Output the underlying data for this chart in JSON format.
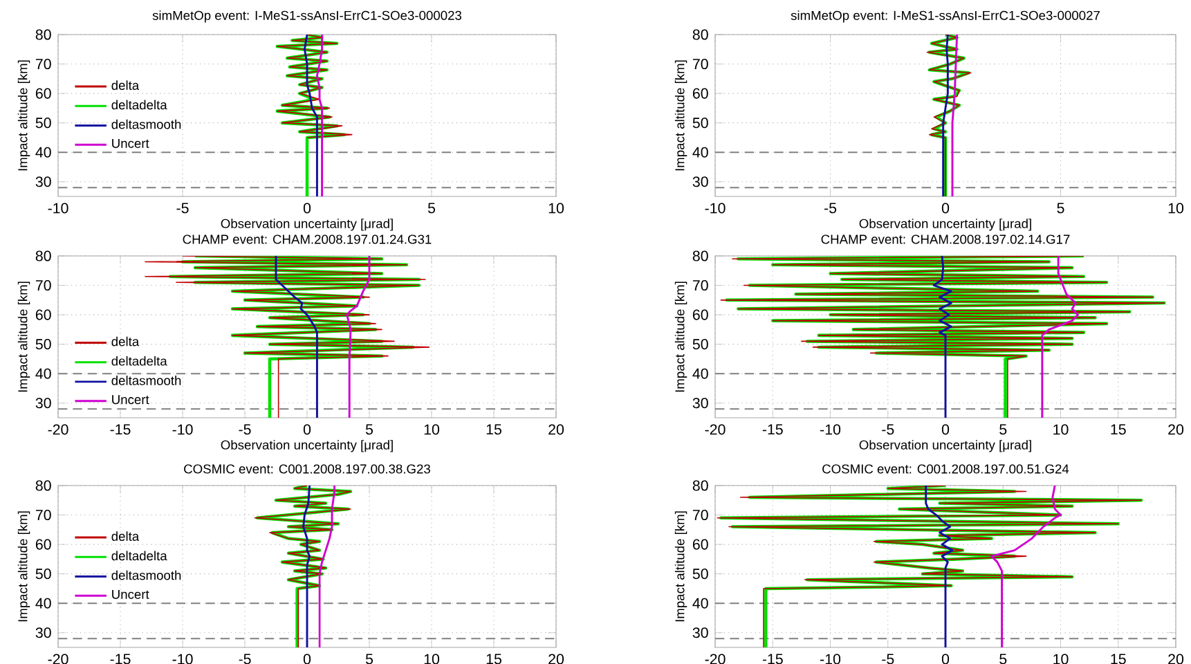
{
  "chart_data": [
    {
      "type": "line",
      "title": "simMetOp event: I-MeS1-ssAnsI-ErrC1-SOe3-000023",
      "xlabel": "Observation uncertainty [μrad]",
      "ylabel": "Impact altitude [km]",
      "xlim": [
        -10,
        10
      ],
      "xticks": [
        -10,
        -5,
        0,
        5,
        10
      ],
      "ylim": [
        25,
        80
      ],
      "yticks": [
        30,
        40,
        50,
        60,
        70,
        80
      ],
      "grid": true,
      "legend": "left",
      "ref_lines": [
        {
          "axis": "y",
          "value": 40,
          "color": "#808080",
          "line_style": "dashed"
        },
        {
          "axis": "y",
          "value": 28,
          "color": "#808080",
          "line_style": "dashed"
        }
      ],
      "series": [
        {
          "name": "delta",
          "color": "#c00000",
          "x": [
            0,
            1.8,
            -0.3,
            1.4,
            -1.0,
            1.0,
            -1.2,
            0.9,
            -1.0,
            0.5,
            -0.3,
            0.6,
            -0.3,
            0.6,
            -0.8,
            0.8,
            -0.7,
            0.8,
            -0.8,
            0.8,
            -1.2,
            1.2,
            -0.6,
            0.6,
            0
          ],
          "values": [
            45,
            46,
            47,
            49,
            50,
            52,
            54,
            55,
            56,
            58,
            60,
            62,
            63,
            65,
            66,
            68,
            69,
            71,
            72,
            74,
            76,
            77,
            78,
            79,
            80
          ]
        },
        {
          "name": "deltadelta",
          "color": "#00e000",
          "x": [
            0,
            0,
            1.5,
            -0.3,
            1.2,
            -1.0,
            0.9,
            -1.2,
            0.8,
            -1.0,
            0.3,
            -0.3,
            0.6,
            -0.3,
            0.6,
            -0.8,
            0.8,
            -0.7,
            0.8,
            -0.8,
            0.8,
            -1.2,
            1.2,
            -0.6,
            0.6,
            0
          ],
          "values": [
            25,
            45,
            46,
            47,
            49,
            50,
            52,
            54,
            55,
            56,
            58,
            60,
            62,
            63,
            65,
            66,
            68,
            69,
            71,
            72,
            74,
            76,
            77,
            78,
            79,
            80
          ]
        },
        {
          "name": "deltasmooth",
          "color": "#1010a0",
          "x": [
            0.4,
            0.4,
            0.2,
            0.1,
            0,
            0,
            -0.1,
            0
          ],
          "values": [
            25,
            52,
            55,
            60,
            63,
            70,
            75,
            80
          ]
        },
        {
          "name": "Uncert",
          "color": "#d000d0",
          "x": [
            0.6,
            0.6,
            0.5,
            0.5,
            0.4,
            0.5,
            0.6,
            0.6
          ],
          "values": [
            25,
            55,
            58,
            62,
            66,
            70,
            75,
            80
          ]
        }
      ]
    },
    {
      "type": "line",
      "title": "simMetOp event: I-MeS1-ssAnsI-ErrC1-SOe3-000027",
      "xlabel": "Observation uncertainty [μrad]",
      "ylabel": "Impact altitude [km]",
      "xlim": [
        -10,
        10
      ],
      "xticks": [
        -10,
        -5,
        0,
        5,
        10
      ],
      "ylim": [
        25,
        80
      ],
      "yticks": [
        30,
        40,
        50,
        60,
        70,
        80
      ],
      "grid": true,
      "ref_lines": [
        {
          "axis": "y",
          "value": 40,
          "color": "#808080",
          "line_style": "dashed"
        },
        {
          "axis": "y",
          "value": 28,
          "color": "#808080",
          "line_style": "dashed"
        }
      ],
      "series": [
        {
          "color": "#c00000",
          "x": [
            0,
            0,
            -0.7,
            0,
            -0.6,
            0,
            -0.5,
            0.2,
            0.6,
            -0.5,
            0.5,
            0.6,
            -0.5,
            0.3,
            1.1,
            -0.7,
            0.2,
            0.8,
            -0.8,
            0.5,
            -0.6,
            0.5,
            0
          ],
          "values": [
            25,
            45,
            46,
            47,
            48,
            50,
            52,
            54,
            56,
            58,
            59,
            61,
            64,
            65,
            67,
            68,
            70,
            72,
            74,
            75,
            77,
            79,
            80
          ]
        },
        {
          "color": "#00e000",
          "x": [
            0,
            0,
            -0.6,
            0,
            -0.5,
            0,
            -0.4,
            0.2,
            0.6,
            -0.5,
            0.4,
            0.6,
            -0.5,
            0.3,
            1.0,
            -0.7,
            0.2,
            0.8,
            -0.7,
            0.5,
            -0.6,
            0.5,
            0
          ],
          "values": [
            25,
            45,
            46,
            47,
            48,
            50,
            52,
            54,
            56,
            58,
            59,
            61,
            64,
            65,
            67,
            68,
            70,
            72,
            74,
            75,
            77,
            79,
            80
          ]
        },
        {
          "color": "#1010a0",
          "x": [
            -0.1,
            -0.1,
            0,
            0.1,
            0.1,
            0.05,
            0.1
          ],
          "values": [
            25,
            50,
            55,
            60,
            70,
            75,
            80
          ]
        },
        {
          "color": "#d000d0",
          "x": [
            0.3,
            0.3,
            0.4,
            0.5
          ],
          "values": [
            25,
            50,
            60,
            80
          ]
        }
      ]
    },
    {
      "type": "line",
      "title": "CHAMP event: CHAM.2008.197.01.24.G31",
      "xlabel": "Observation uncertainty [μrad]",
      "ylabel": "Impact altitude [km]",
      "xlim": [
        -20,
        20
      ],
      "xticks": [
        -20,
        -15,
        -10,
        -5,
        0,
        5,
        10,
        15,
        20
      ],
      "ylim": [
        25,
        80
      ],
      "yticks": [
        30,
        40,
        50,
        60,
        70,
        80
      ],
      "grid": true,
      "legend": "bottom left",
      "ref_lines": [
        {
          "axis": "y",
          "value": 40,
          "color": "#808080",
          "line_style": "dashed"
        },
        {
          "axis": "y",
          "value": 28,
          "color": "#808080",
          "line_style": "dashed"
        }
      ],
      "series": [
        {
          "name": "delta",
          "color": "#c00000",
          "x": [
            -2.3,
            -2.3,
            6.5,
            -5,
            9.8,
            -3,
            7,
            -6,
            6,
            -4,
            5.5,
            -3,
            5,
            -6,
            4,
            -5,
            5,
            -6,
            9,
            -10.5,
            9.5,
            -13,
            6,
            -9,
            8,
            -13,
            6,
            -10
          ],
          "values": [
            25,
            45,
            46,
            47,
            49,
            50,
            51,
            53,
            55,
            56,
            57,
            59,
            60,
            62,
            63,
            65,
            66,
            68,
            70,
            71,
            72,
            73,
            74,
            76,
            77,
            78,
            79,
            80
          ]
        },
        {
          "name": "deltadelta",
          "color": "#00e000",
          "x": [
            -3,
            -3,
            6,
            -5,
            8.5,
            -3,
            6,
            -6,
            5.5,
            -4,
            5,
            -3,
            4.5,
            -6,
            4,
            -5,
            4.5,
            -6,
            9,
            -9,
            9,
            -11,
            6,
            -9,
            8,
            -10,
            6,
            -9
          ],
          "values": [
            25,
            45,
            46,
            47,
            49,
            50,
            51,
            53,
            55,
            56,
            57,
            59,
            60,
            62,
            63,
            65,
            66,
            68,
            70,
            71,
            72,
            73,
            74,
            76,
            77,
            78,
            79,
            80
          ]
        },
        {
          "name": "deltasmooth",
          "color": "#1010a0",
          "x": [
            0.8,
            0.8,
            0.6,
            0,
            -0.5,
            -0.4,
            -1,
            -2,
            -2.5,
            -2.5
          ],
          "values": [
            25,
            54,
            56,
            60,
            62,
            64,
            66,
            70,
            72,
            80
          ]
        },
        {
          "name": "Uncert",
          "color": "#d000d0",
          "x": [
            3.4,
            3.4,
            3.5,
            3.2,
            3.4,
            4,
            4.5,
            5,
            5
          ],
          "values": [
            25,
            45,
            55,
            60,
            61,
            63,
            68,
            72,
            80
          ]
        }
      ]
    },
    {
      "type": "line",
      "title": "CHAMP event: CHAM.2008.197.02.14.G17",
      "xlabel": "Observation uncertainty [μrad]",
      "ylabel": "Impact altitude [km]",
      "xlim": [
        -20,
        20
      ],
      "xticks": [
        -20,
        -15,
        -10,
        -5,
        0,
        5,
        10,
        15,
        20
      ],
      "ylim": [
        25,
        80
      ],
      "yticks": [
        30,
        40,
        50,
        60,
        70,
        80
      ],
      "grid": true,
      "ref_lines": [
        {
          "axis": "y",
          "value": 40,
          "color": "#808080",
          "line_style": "dashed"
        },
        {
          "axis": "y",
          "value": 28,
          "color": "#808080",
          "line_style": "dashed"
        }
      ],
      "series": [
        {
          "color": "#c00000",
          "x": [
            5.4,
            5.4,
            7,
            -6.5,
            9,
            -11.5,
            11,
            -12.5,
            11,
            -11,
            12,
            -8,
            14,
            -15,
            13,
            -10,
            16,
            -18,
            19,
            -19.5,
            18,
            -13,
            8,
            -17.5,
            14,
            -9,
            12,
            -10,
            11,
            -15,
            9,
            -18.5,
            12
          ],
          "values": [
            25,
            45,
            46,
            47,
            48,
            49,
            50,
            51,
            52,
            53,
            54,
            55,
            57,
            58,
            59,
            60,
            61,
            62,
            64,
            65,
            66,
            67,
            68,
            70,
            71,
            72,
            73,
            74,
            76,
            77,
            78,
            79,
            80
          ]
        },
        {
          "color": "#00e000",
          "x": [
            5.2,
            5.2,
            7,
            -6,
            9,
            -11,
            11,
            -12,
            11,
            -11,
            12,
            -8,
            14,
            -15,
            13,
            -10,
            16,
            -18,
            19,
            -19,
            18,
            -13,
            8,
            -17,
            14,
            -9,
            12,
            -10,
            11,
            -15,
            9,
            -18,
            12
          ],
          "values": [
            25,
            45,
            46,
            47,
            48,
            49,
            50,
            51,
            52,
            53,
            54,
            55,
            57,
            58,
            59,
            60,
            61,
            62,
            64,
            65,
            66,
            67,
            68,
            70,
            71,
            72,
            73,
            74,
            76,
            77,
            78,
            79,
            80
          ]
        },
        {
          "color": "#1010a0",
          "x": [
            0,
            0,
            -0.5,
            0.5,
            -0.5,
            0.3,
            -0.5,
            0.5,
            -0.5,
            0.5,
            -1,
            -0.3,
            -0.2,
            -0.3
          ],
          "values": [
            25,
            53,
            54,
            56,
            58,
            60,
            62,
            64,
            66,
            68,
            70,
            72,
            76,
            80
          ]
        },
        {
          "color": "#d000d0",
          "x": [
            8.4,
            8.4,
            9,
            11,
            11.5,
            11,
            11.3,
            10.5,
            10,
            9.8,
            9.8
          ],
          "values": [
            25,
            53,
            55,
            58,
            60,
            62,
            64,
            67,
            72,
            74,
            80
          ]
        }
      ]
    },
    {
      "type": "line",
      "title": "COSMIC event: C001.2008.197.00.38.G23",
      "ylabel": "Impact altitude [km]",
      "xlim": [
        -20,
        20
      ],
      "xticks": [
        -20,
        -15,
        -10,
        -5,
        0,
        5,
        10,
        15,
        20
      ],
      "ylim": [
        25,
        80
      ],
      "yticks": [
        30,
        40,
        50,
        60,
        70,
        80
      ],
      "grid": true,
      "legend": "left",
      "ref_lines": [
        {
          "axis": "y",
          "value": 40,
          "color": "#808080",
          "line_style": "dashed"
        },
        {
          "axis": "y",
          "value": 28,
          "color": "#808080",
          "line_style": "dashed"
        }
      ],
      "series": [
        {
          "name": "delta",
          "color": "#c00000",
          "x": [
            -0.7,
            -0.7,
            1,
            -1.5,
            1.2,
            -1,
            1.5,
            -2,
            1.3,
            -1.5,
            1,
            -0.5,
            1,
            -1.5,
            -3,
            2,
            -1.5,
            2.5,
            -4.2,
            3.5,
            -1,
            1.5,
            -2.5,
            2.5,
            3.5,
            -1,
            0
          ],
          "values": [
            25,
            45,
            46,
            48,
            50,
            51,
            52,
            54,
            55,
            57,
            58,
            60,
            61,
            62,
            64,
            65,
            66,
            67,
            69,
            72,
            73,
            74,
            75,
            77,
            78,
            79,
            80
          ]
        },
        {
          "name": "deltadelta",
          "color": "#00e000",
          "x": [
            -0.8,
            -0.8,
            1,
            -1.5,
            1.2,
            -1,
            1.5,
            -2,
            1.3,
            -1.5,
            1,
            -0.5,
            1,
            -1.5,
            -2.8,
            2,
            -1.5,
            2.5,
            -4,
            3.3,
            -1,
            1.5,
            -2.5,
            2.5,
            3.5,
            -1,
            0
          ],
          "values": [
            25,
            45,
            46,
            48,
            50,
            51,
            52,
            54,
            55,
            57,
            58,
            60,
            61,
            62,
            64,
            65,
            66,
            67,
            69,
            72,
            73,
            74,
            75,
            77,
            78,
            79,
            80
          ]
        },
        {
          "name": "deltasmooth",
          "color": "#1010a0",
          "x": [
            0,
            0,
            0.2,
            0,
            0,
            -0.3,
            -0.2,
            0.1,
            0.2
          ],
          "values": [
            25,
            53,
            56,
            58,
            62,
            66,
            70,
            74,
            80
          ]
        },
        {
          "name": "Uncert",
          "color": "#d000d0",
          "x": [
            1,
            1,
            1.2,
            1.5,
            1.8,
            2,
            2,
            2.2,
            2.2
          ],
          "values": [
            25,
            50,
            54,
            58,
            62,
            66,
            72,
            78,
            80
          ]
        }
      ]
    },
    {
      "type": "line",
      "title": "COSMIC event: C001.2008.197.00.51.G24",
      "ylabel": "Impact altitude [km]",
      "xlim": [
        -20,
        20
      ],
      "xticks": [
        -20,
        -15,
        -10,
        -5,
        0,
        5,
        10,
        15,
        20
      ],
      "ylim": [
        25,
        80
      ],
      "yticks": [
        30,
        40,
        50,
        60,
        70,
        80
      ],
      "grid": true,
      "ref_lines": [
        {
          "axis": "y",
          "value": 40,
          "color": "#808080",
          "line_style": "dashed"
        },
        {
          "axis": "y",
          "value": 28,
          "color": "#808080",
          "line_style": "dashed"
        }
      ],
      "series": [
        {
          "color": "#c00000",
          "x": [
            -15.8,
            -15.8,
            -6,
            0.5,
            -12.2,
            11,
            -2,
            1.5,
            -1.4,
            -6.2,
            1,
            7,
            -1,
            1.5,
            -2,
            -6.2,
            4,
            -0.5,
            13,
            -18.8,
            15,
            -19.8,
            10,
            -4,
            11,
            -0.5,
            17,
            -17.8,
            7,
            -5,
            0
          ],
          "values": [
            25,
            45,
            45.5,
            46,
            48,
            49,
            50,
            51,
            52,
            54,
            55,
            56,
            57,
            58,
            60,
            61,
            62,
            63,
            64,
            66,
            67,
            69,
            70,
            72,
            73,
            74,
            75,
            76,
            78,
            79,
            80
          ]
        },
        {
          "color": "#00e000",
          "x": [
            -15.6,
            -15.6,
            -6,
            0.5,
            -12,
            11,
            -2,
            1.5,
            -1.4,
            -6,
            1,
            6,
            -1,
            1.5,
            -2,
            -6,
            4,
            -0.5,
            13,
            -18.5,
            15,
            -19.5,
            10,
            -4,
            11,
            -0.5,
            17,
            -17,
            6,
            -5,
            0
          ],
          "values": [
            25,
            45,
            45.5,
            46,
            48,
            49,
            50,
            51,
            52,
            54,
            55,
            56,
            57,
            58,
            60,
            61,
            62,
            63,
            64,
            66,
            67,
            69,
            70,
            72,
            73,
            74,
            75,
            76,
            78,
            79,
            80
          ]
        },
        {
          "color": "#1010a0",
          "x": [
            0,
            0,
            0.2,
            -0.3,
            0.6,
            -0.3,
            0.4,
            -0.5,
            0.4,
            -0.3,
            -0.8,
            -1.5,
            -1.7,
            -1.7
          ],
          "values": [
            25,
            52,
            54,
            56,
            58,
            60,
            62,
            64,
            66,
            68,
            70,
            72,
            74,
            80
          ]
        },
        {
          "color": "#d000d0",
          "x": [
            4.9,
            4.9,
            4.5,
            4,
            6,
            7.5,
            8.5,
            9.5,
            10,
            9.5,
            9.3,
            9.5
          ],
          "values": [
            25,
            51,
            54,
            56,
            58,
            62,
            66,
            69,
            70,
            72,
            76,
            80
          ]
        }
      ]
    }
  ]
}
